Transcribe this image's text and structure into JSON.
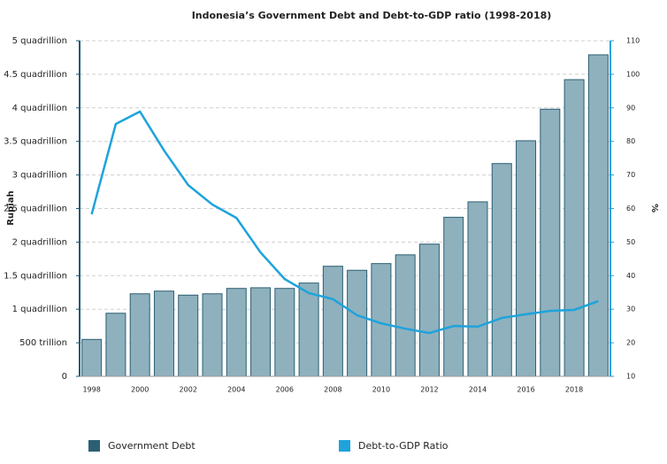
{
  "chart_data": {
    "type": "bar_line",
    "title": "Indonesia’s Government Debt and Debt-to-GDP ratio (1998-2018)",
    "ylabel": "Rupiah",
    "y2label": "%",
    "categories": [
      "1998",
      null,
      "2000",
      null,
      "2002",
      null,
      "2004",
      null,
      "2006",
      null,
      "2008",
      null,
      "2010",
      null,
      "2012",
      null,
      "2014",
      null,
      "2016",
      null,
      "2018",
      null
    ],
    "series": [
      {
        "name": "Government Debt",
        "type": "bar",
        "color": "#8eb1bd",
        "edge": "#2c5f73",
        "values": [
          550000000000000,
          940000000000000,
          1230000000000000,
          1270000000000000,
          1210000000000000,
          1230000000000000,
          1310000000000000,
          1320000000000000,
          1310000000000000,
          1390000000000000,
          1640000000000000,
          1580000000000000,
          1680000000000000,
          1810000000000000,
          1970000000000000,
          2370000000000000,
          2600000000000000,
          3170000000000000,
          3510000000000000,
          3980000000000000,
          4420000000000000,
          4790000000000000
        ]
      },
      {
        "name": "Debt-to-GDP Ratio",
        "type": "line",
        "axis": "y2",
        "color": "#1ea3dc",
        "values": [
          58.3,
          85.2,
          88.9,
          77.3,
          67.0,
          61.2,
          57.2,
          46.9,
          39.0,
          34.8,
          33.0,
          28.2,
          25.8,
          24.2,
          22.9,
          25.0,
          24.8,
          27.4,
          28.5,
          29.5,
          29.8,
          32.4
        ]
      }
    ],
    "ylim": [
      0,
      5000000000000000
    ],
    "yticks": [
      0,
      {
        "value": 500000000000000,
        "label": "500 trillion"
      },
      {
        "value": 1000000000000000,
        "label": "1 quadrillion"
      },
      {
        "value": 1500000000000000,
        "label": "1.5 quadrillion"
      },
      {
        "value": 2000000000000000,
        "label": "2 quadrillion"
      },
      {
        "value": 2500000000000000,
        "label": "2.5 quadrillion"
      },
      {
        "value": 3000000000000000,
        "label": "3 quadrillion"
      },
      {
        "value": 3500000000000000,
        "label": "3.5 quadrillion"
      },
      {
        "value": 4000000000000000,
        "label": "4 quadrillion"
      },
      {
        "value": 4500000000000000,
        "label": "4.5 quadrillion"
      },
      {
        "value": 5000000000000000,
        "label": "5 quadrillion"
      }
    ],
    "y2lim": [
      10,
      110
    ],
    "y2ticks": [
      10,
      20,
      30,
      40,
      50,
      60,
      70,
      80,
      90,
      100,
      110
    ],
    "grid": true
  }
}
